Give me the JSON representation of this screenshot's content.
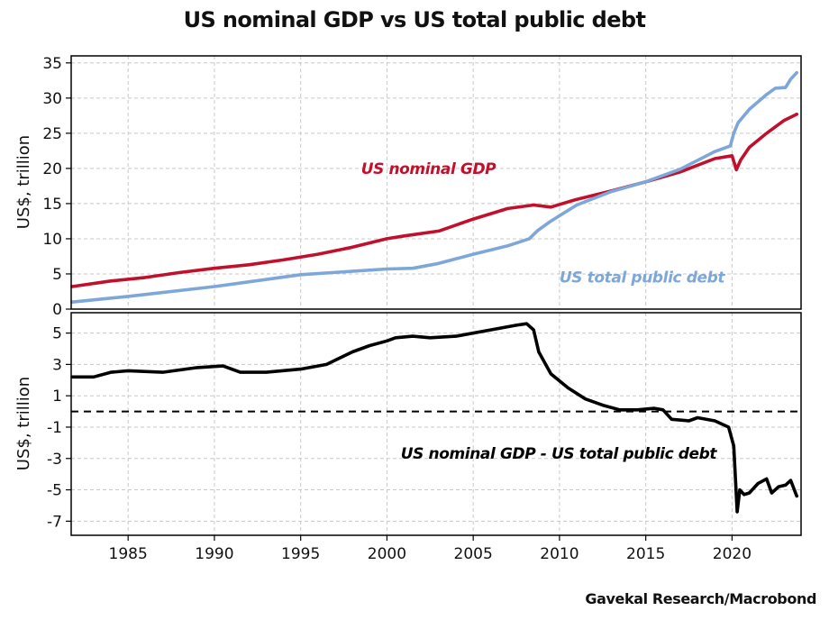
{
  "title": "US nominal GDP vs US total public debt",
  "source": "Gavekal Research/Macrobond",
  "colors": {
    "gdp": "#c0102b",
    "debt": "#7da7d9",
    "diff": "#000000",
    "grid": "#c8c8c8"
  },
  "chart_data": [
    {
      "type": "line",
      "ylabel": "US$, trillion",
      "xlim": [
        1981.7,
        2024.0
      ],
      "ylim": [
        0,
        36
      ],
      "yticks": [
        0,
        5,
        10,
        15,
        20,
        25,
        30,
        35
      ],
      "grid": true,
      "series": [
        {
          "name": "US nominal GDP",
          "color": "#c0102b",
          "x": [
            1981.75,
            1984,
            1986,
            1988,
            1990,
            1992,
            1994,
            1996,
            1998,
            2000,
            2001,
            2003,
            2005,
            2007,
            2008.5,
            2009.5,
            2011,
            2013,
            2015,
            2017,
            2019,
            2020,
            2020.25,
            2020.5,
            2021,
            2022,
            2023,
            2023.75
          ],
          "values": [
            3.2,
            4.0,
            4.5,
            5.2,
            5.8,
            6.3,
            7.0,
            7.8,
            8.8,
            10.0,
            10.4,
            11.1,
            12.8,
            14.3,
            14.8,
            14.5,
            15.6,
            16.8,
            18.1,
            19.5,
            21.4,
            21.8,
            19.8,
            21.2,
            23.0,
            25.0,
            26.8,
            27.7
          ]
        },
        {
          "name": "US total public debt",
          "color": "#7da7d9",
          "x": [
            1981.75,
            1985,
            1990,
            1995,
            2000,
            2001.5,
            2003,
            2005,
            2007,
            2008.25,
            2008.75,
            2009.5,
            2011,
            2013,
            2015,
            2017,
            2019,
            2019.9,
            2020.1,
            2020.35,
            2021,
            2022,
            2022.5,
            2023.1,
            2023.4,
            2023.75
          ],
          "values": [
            1.0,
            1.8,
            3.2,
            4.9,
            5.7,
            5.8,
            6.5,
            7.8,
            9.0,
            10.0,
            11.2,
            12.5,
            14.8,
            16.7,
            18.1,
            19.9,
            22.4,
            23.2,
            25.0,
            26.5,
            28.4,
            30.5,
            31.4,
            31.5,
            32.7,
            33.6
          ]
        }
      ],
      "annotations": [
        {
          "text": "US nominal GDP",
          "x": 1998.5,
          "y": 19.2,
          "color": "#c0102b"
        },
        {
          "text": "US total public debt",
          "x": 2010,
          "y": 3.8,
          "color": "#7da7d9"
        }
      ]
    },
    {
      "type": "line",
      "ylabel": "US$, trillion",
      "xlim": [
        1981.7,
        2024.0
      ],
      "ylim": [
        -7.9,
        6.3
      ],
      "yticks": [
        -7,
        -5,
        -3,
        -1,
        1,
        3,
        5
      ],
      "xticks": [
        1985,
        1990,
        1995,
        2000,
        2005,
        2010,
        2015,
        2020
      ],
      "grid": true,
      "reference_line": 0,
      "series": [
        {
          "name": "US nominal GDP - US total public debt",
          "color": "#000000",
          "x": [
            1981.75,
            1983,
            1984,
            1985,
            1987,
            1989,
            1990.5,
            1991.5,
            1993,
            1995,
            1996.5,
            1998,
            1999,
            2000,
            2000.5,
            2001.5,
            2002.5,
            2004,
            2006,
            2007.5,
            2008.1,
            2008.5,
            2008.8,
            2009.5,
            2010.5,
            2011.5,
            2012.5,
            2013.5,
            2014.5,
            2015.5,
            2016,
            2016.5,
            2017.5,
            2018,
            2019,
            2019.8,
            2020.1,
            2020.3,
            2020.45,
            2020.7,
            2021,
            2021.5,
            2022,
            2022.3,
            2022.7,
            2023.1,
            2023.4,
            2023.75
          ],
          "values": [
            2.2,
            2.2,
            2.5,
            2.6,
            2.5,
            2.8,
            2.9,
            2.5,
            2.5,
            2.7,
            3.0,
            3.8,
            4.2,
            4.5,
            4.7,
            4.8,
            4.7,
            4.8,
            5.2,
            5.5,
            5.6,
            5.2,
            3.8,
            2.4,
            1.5,
            0.8,
            0.4,
            0.1,
            0.1,
            0.2,
            0.1,
            -0.5,
            -0.6,
            -0.4,
            -0.6,
            -1.0,
            -2.2,
            -6.4,
            -5.0,
            -5.3,
            -5.2,
            -4.6,
            -4.3,
            -5.2,
            -4.8,
            -4.7,
            -4.4,
            -5.4
          ]
        }
      ],
      "annotations": [
        {
          "text": "US nominal GDP - US total public debt",
          "x": 2000.8,
          "y": -3.0,
          "color": "#000000"
        }
      ]
    }
  ]
}
